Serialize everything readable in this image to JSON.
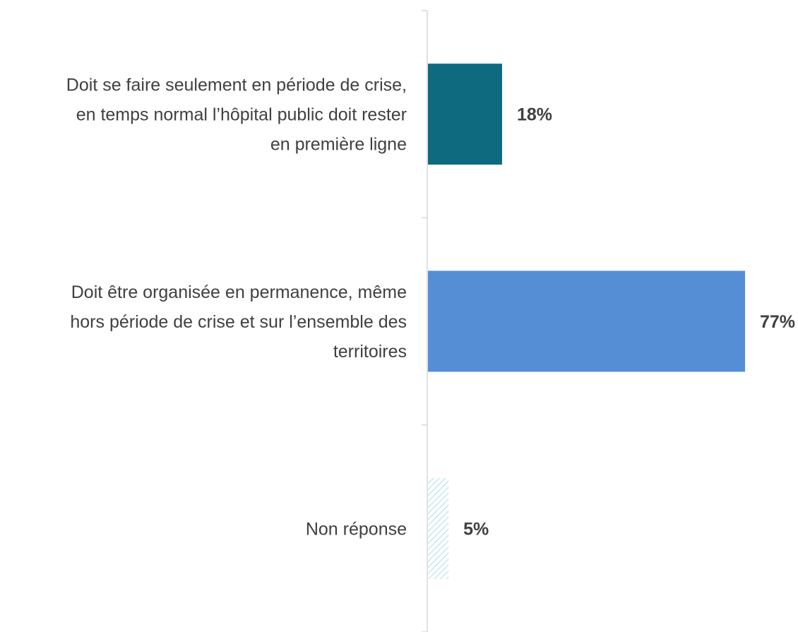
{
  "chart_data": {
    "type": "bar",
    "orientation": "horizontal",
    "categories": [
      "Doit se faire seulement en période de crise, en temps normal l’hôpital public doit rester en première ligne",
      "Doit être organisée en permanence, même hors période de crise et sur l’ensemble des territoires",
      "Non réponse"
    ],
    "category_lines": [
      [
        "Doit se faire seulement en période de crise,",
        "en temps normal l’hôpital public doit rester",
        "en première ligne"
      ],
      [
        "Doit être organisée en permanence, même",
        "hors période de crise et sur l’ensemble des",
        "territoires"
      ],
      [
        "Non réponse"
      ]
    ],
    "values": [
      18,
      77,
      5
    ],
    "value_labels": [
      "18%",
      "77%",
      "5%"
    ],
    "value_unit": "%",
    "xlim": [
      0,
      100
    ],
    "bar_colors": [
      "#0e6a7e",
      "#568ed6",
      "#c6e8ee"
    ],
    "bar_patterns": [
      "solid",
      "solid",
      "hatched"
    ],
    "axis_color": "#d9d9d9",
    "label_color": "#404040",
    "grid": false,
    "legend": "none",
    "title": "",
    "xlabel": "",
    "ylabel": ""
  }
}
